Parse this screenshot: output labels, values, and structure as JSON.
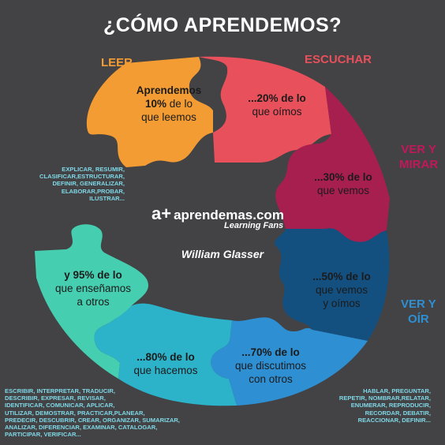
{
  "title": "¿CÓMO APRENDEMOS?",
  "categories": {
    "leer": "LEER",
    "escuchar": "ESCUCHAR",
    "ver_mirar": [
      "VER Y",
      "MIRAR"
    ],
    "ver_oir": [
      "VER Y",
      "OÍR"
    ]
  },
  "pieces": [
    {
      "color": "#f39c33",
      "strong": [
        "Aprendemos",
        "10%"
      ],
      "text": [
        "de lo",
        "que leemos"
      ]
    },
    {
      "color": "#e8505b",
      "strong": [
        "...20% de lo"
      ],
      "text": [
        "que oímos"
      ]
    },
    {
      "color": "#a71f4f",
      "strong": [
        "...30% de lo"
      ],
      "text": [
        "que vemos"
      ]
    },
    {
      "color": "#134f7f",
      "strong": [
        "...50% de lo"
      ],
      "text": [
        "que vemos",
        "y oímos"
      ]
    },
    {
      "color": "#2e8fd3",
      "strong": [
        "...70% de lo"
      ],
      "text": [
        "que discutimos",
        "con otros"
      ]
    },
    {
      "color": "#2cb2c9",
      "strong": [
        "...80% de lo"
      ],
      "text": [
        "que hacemos"
      ]
    },
    {
      "color": "#46ceb0",
      "strong": [
        "y 95% de lo"
      ],
      "text": [
        "que enseñamos",
        "a otros"
      ]
    }
  ],
  "brand": {
    "logo": "a+",
    "name": "aprendemas.com",
    "tagline": "Learning Fans"
  },
  "author": "William Glasser",
  "verbs_upper_left": [
    "EXPLICAR, RESUMIR,",
    "CLASIFICAR,ESTRUCTURAR,",
    "DEFINIR, GENERALIZAR,",
    "ELABORAR,PROBAR,",
    "ILUSTRAR..."
  ],
  "verbs_bottom_left": [
    "ESCRIBIR, INTERPRETAR, TRADUCIR,",
    "DESCRIBIR, EXPRESAR, REVISAR,",
    "IDENTIFICAR, COMUNICAR, APLICAR,",
    "UTILIZAR, DEMOSTRAR, PRACTICAR,PLANEAR,",
    "PREDECIR, DESCUBRIR, CREAR, ORGANIZAR, SUMARIZAR,",
    "ANALIZAR, DIFERENCIAR, EXAMINAR, CATALOGAR,",
    "PARTICIPAR, VERIFICAR..."
  ],
  "verbs_bottom_right": [
    "HABLAR, PREGUNTAR,",
    "REPETIR, NOMBRAR,RELATAR,",
    "ENUMERAR, REPRODUCIR,",
    "RECORDAR, DEBATIR,",
    "REACCIONAR, DEFINIR..."
  ],
  "colors": {
    "background": "#434244",
    "leer": "#f39c33",
    "escuchar": "#e8505b",
    "ver_mirar": "#c2185b",
    "ver_oir": "#2e8fd3",
    "verbs": "#7fd9e8"
  }
}
